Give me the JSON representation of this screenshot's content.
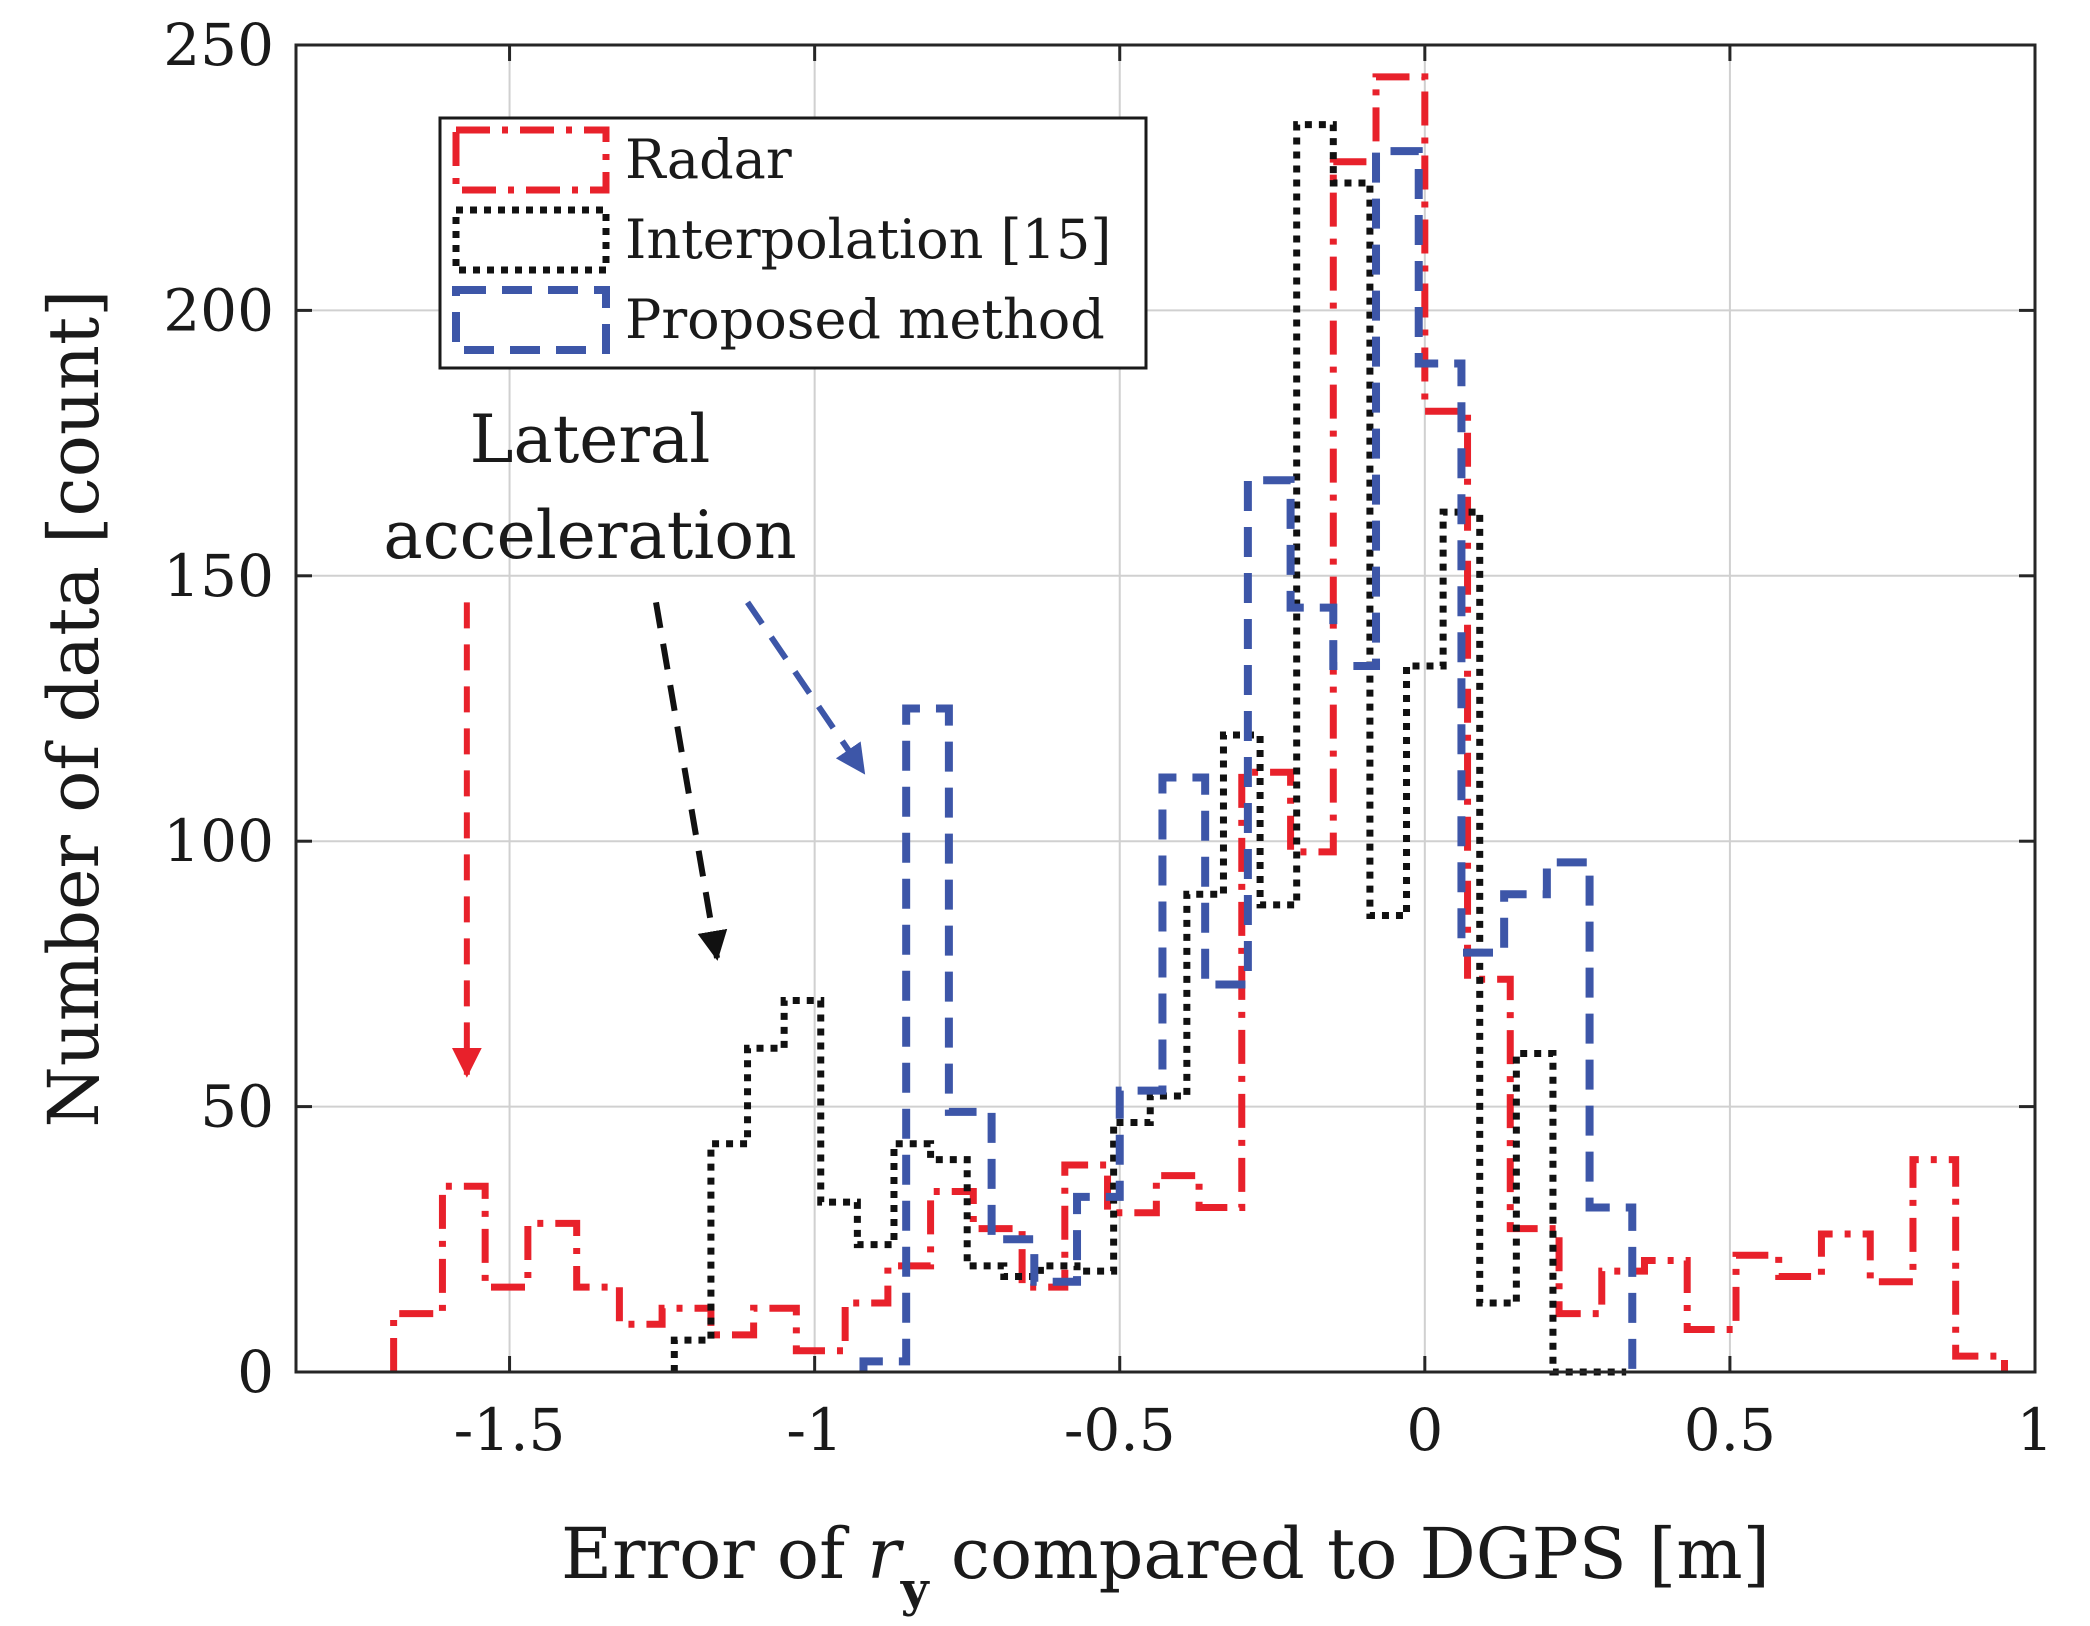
{
  "chart_data": {
    "type": "histogram",
    "xlabel_parts": {
      "before": "Error of ",
      "var": "r",
      "sub": "y",
      "after": " compared to DGPS [m]"
    },
    "ylabel": "Number of data [count]",
    "xlim": [
      -1.85,
      1.0
    ],
    "ylim": [
      0,
      250
    ],
    "xticks": [
      -1.5,
      -1,
      -0.5,
      0,
      0.5,
      1
    ],
    "xtick_labels": [
      "-1.5",
      "-1",
      "-0.5",
      "0",
      "0.5",
      "1"
    ],
    "yticks": [
      0,
      50,
      100,
      150,
      200,
      250
    ],
    "ytick_labels": [
      "0",
      "50",
      "100",
      "150",
      "200",
      "250"
    ],
    "grid": true,
    "legend_position": "top-left",
    "series": [
      {
        "name": "Radar",
        "color": "#e8212b",
        "dash": "dash-dot",
        "edges": [
          -1.69,
          -1.61,
          -1.54,
          -1.47,
          -1.39,
          -1.32,
          -1.25,
          -1.17,
          -1.1,
          -1.03,
          -0.95,
          -0.88,
          -0.81,
          -0.74,
          -0.66,
          -0.59,
          -0.52,
          -0.44,
          -0.37,
          -0.3,
          -0.22,
          -0.15,
          -0.08,
          0.0,
          0.07,
          0.14,
          0.22,
          0.29,
          0.36,
          0.43,
          0.51,
          0.58,
          0.65,
          0.73,
          0.8,
          0.87,
          0.95
        ],
        "counts": [
          11,
          35,
          16,
          28,
          16,
          9,
          12,
          7,
          12,
          4,
          13,
          20,
          34,
          27,
          16,
          39,
          30,
          37,
          31,
          113,
          98,
          228,
          244,
          181,
          74,
          27,
          11,
          19,
          21,
          8,
          22,
          18,
          26,
          17,
          40,
          3
        ]
      },
      {
        "name": "Interpolation [15]",
        "color": "#111111",
        "dash": "dotted",
        "edges": [
          -1.23,
          -1.17,
          -1.11,
          -1.05,
          -0.99,
          -0.93,
          -0.87,
          -0.81,
          -0.75,
          -0.69,
          -0.63,
          -0.57,
          -0.51,
          -0.45,
          -0.39,
          -0.33,
          -0.27,
          -0.21,
          -0.15,
          -0.09,
          -0.03,
          0.03,
          0.09,
          0.15,
          0.21,
          0.27,
          0.33
        ],
        "counts": [
          6,
          43,
          61,
          70,
          32,
          24,
          43,
          40,
          20,
          18,
          20,
          19,
          47,
          52,
          90,
          120,
          88,
          235,
          224,
          86,
          133,
          162,
          13,
          60,
          0,
          0
        ]
      },
      {
        "name": "Proposed method",
        "color": "#3d56a8",
        "dash": "dashed",
        "edges": [
          -0.92,
          -0.85,
          -0.78,
          -0.71,
          -0.64,
          -0.57,
          -0.5,
          -0.43,
          -0.36,
          -0.29,
          -0.22,
          -0.15,
          -0.08,
          -0.01,
          0.06,
          0.13,
          0.2,
          0.27,
          0.34
        ],
        "counts": [
          2,
          125,
          49,
          25,
          17,
          33,
          53,
          112,
          73,
          168,
          144,
          133,
          230,
          190,
          79,
          90,
          96,
          31
        ]
      }
    ],
    "annotation": {
      "lines": [
        "Lateral",
        "acceleration"
      ],
      "arrows": [
        {
          "color": "#e8212b",
          "from": [
            -1.57,
            145
          ],
          "to": [
            -1.57,
            56
          ]
        },
        {
          "color": "#111111",
          "from": [
            -1.26,
            145
          ],
          "to": [
            -1.16,
            78
          ]
        },
        {
          "color": "#3d56a8",
          "from": [
            -1.11,
            145
          ],
          "to": [
            -0.92,
            113
          ]
        }
      ]
    }
  }
}
